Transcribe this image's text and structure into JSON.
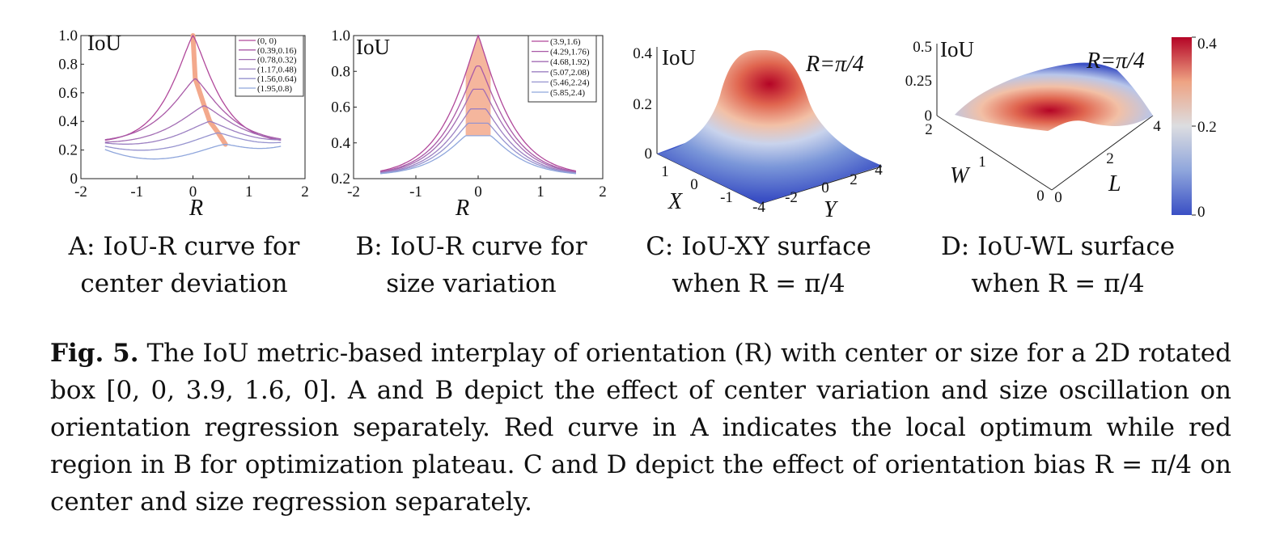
{
  "figure": {
    "captions": [
      {
        "id": "A",
        "line1": "A: IoU-R curve for",
        "line2": "center deviation"
      },
      {
        "id": "B",
        "line1": "B: IoU-R curve for",
        "line2": "size variation"
      },
      {
        "id": "C",
        "line1": "C: IoU-XY surface",
        "line2": "when R = π/4"
      },
      {
        "id": "D",
        "line1": "D: IoU-WL surface",
        "line2": "when R = π/4"
      }
    ],
    "main_caption": {
      "label": "Fig. 5.",
      "text": "The IoU metric-based interplay of orientation (R) with center or size for a 2D rotated box [0, 0, 3.9, 1.6, 0]. A and B depict the effect of center variation and size oscillation on orientation regression separately. Red curve in A indicates the local optimum while red region in B for optimization plateau. C and D depict the effect of orientation bias R = π/4 on center and size regression separately."
    },
    "colors": {
      "curve_dark": "#b0479a",
      "curve_light": "#8fa6dc",
      "highlight": "#f3a98c",
      "cmap_low": "#3a4fc4",
      "cmap_mid": "#dcdde0",
      "cmap_high": "#b40426"
    }
  },
  "chart_data": [
    {
      "id": "A",
      "type": "line",
      "ylabel": "IoU",
      "xlabel": "R",
      "xlim": [
        -2,
        2
      ],
      "ylim": [
        0,
        1.0
      ],
      "xticks": [
        "-2",
        "-1",
        "0",
        "1",
        "2"
      ],
      "yticks": [
        "0",
        "0.2",
        "0.4",
        "0.6",
        "0.8",
        "1.0"
      ],
      "series": [
        {
          "name": "(0, 0)",
          "peak_x": 0.0,
          "peak": 1.0,
          "base": 0.25,
          "trough": 0.25
        },
        {
          "name": "(0.39,0.16)",
          "peak_x": 0.04,
          "peak": 0.7,
          "base": 0.25,
          "trough": 0.25
        },
        {
          "name": "(0.78,0.32)",
          "peak_x": 0.2,
          "peak": 0.51,
          "base": 0.24,
          "trough": 0.22
        },
        {
          "name": "(1.17,0.48)",
          "peak_x": 0.3,
          "peak": 0.4,
          "base": 0.24,
          "trough": 0.18
        },
        {
          "name": "(1.56,0.64)",
          "peak_x": 0.45,
          "peak": 0.32,
          "base": 0.22,
          "trough": 0.13
        },
        {
          "name": "(1.95,0.8)",
          "peak_x": 0.58,
          "peak": 0.24,
          "base": 0.2,
          "trough": 0.06
        }
      ],
      "highlight": "local optimum curve"
    },
    {
      "id": "B",
      "type": "line",
      "ylabel": "IoU",
      "xlabel": "R",
      "xlim": [
        -2,
        2
      ],
      "ylim": [
        0.2,
        1.0
      ],
      "xticks": [
        "-2",
        "-1",
        "0",
        "1",
        "2"
      ],
      "yticks": [
        "0.2",
        "0.4",
        "0.6",
        "0.8",
        "1.0"
      ],
      "series": [
        {
          "name": "(3.9,1.6)",
          "peak": 1.0,
          "plateau": 0.0
        },
        {
          "name": "(4.29,1.76)",
          "peak": 0.83,
          "plateau": 0.03
        },
        {
          "name": "(4.68,1.92)",
          "peak": 0.7,
          "plateau": 0.08
        },
        {
          "name": "(5.07,2.08)",
          "peak": 0.59,
          "plateau": 0.12
        },
        {
          "name": "(5.46,2.24)",
          "peak": 0.51,
          "plateau": 0.16
        },
        {
          "name": "(5.85,2.4)",
          "peak": 0.44,
          "plateau": 0.2
        }
      ],
      "tail": 0.215,
      "highlight": "optimization plateau region"
    },
    {
      "id": "C",
      "type": "heatmap",
      "zlabel": "IoU",
      "annotation": "R=π/4",
      "xlabel": "X",
      "ylabel": "Y",
      "zticks": [
        "0",
        "0.2",
        "0.4"
      ],
      "xticks": [
        "1",
        "0",
        "-1"
      ],
      "yticks": [
        "-4",
        "-2",
        "0",
        "2",
        "4"
      ],
      "zmax": 0.4
    },
    {
      "id": "D",
      "type": "heatmap",
      "zlabel": "IoU",
      "annotation": "R=π/4",
      "xlabel": "W",
      "ylabel": "L",
      "zticks": [
        "0",
        "0.25",
        "0.5"
      ],
      "wticks": [
        "2",
        "1",
        "0"
      ],
      "lticks": [
        "0",
        "2",
        "4"
      ],
      "colorbar": {
        "ticks": [
          "0",
          "0.2",
          "0.4"
        ],
        "range": [
          0,
          0.4
        ]
      }
    }
  ]
}
